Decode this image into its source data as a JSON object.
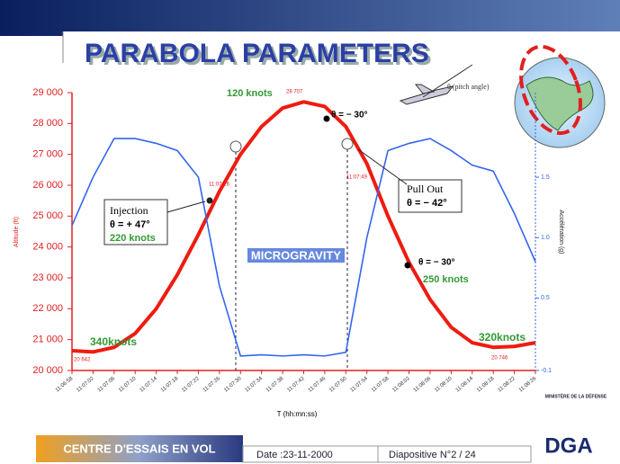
{
  "header": {
    "title": "PARABOLA PARAMETERS"
  },
  "chart_data": {
    "type": "line",
    "xlabel": "T (hh:mn:ss)",
    "ylabel": "Altitude (ft)",
    "y2label": "Accélération (g)",
    "categories": [
      "11:06:58",
      "11:07:02",
      "11:07:06",
      "11:07:10",
      "11:07:14",
      "11:07:18",
      "11:07:22",
      "11:07:26",
      "11:07:30",
      "11:07:34",
      "11:07:38",
      "11:07:42",
      "11:07:46",
      "11:07:50",
      "11:07:54",
      "11:07:58",
      "11:08:02",
      "11:08:06",
      "11:08:10",
      "11:08:14",
      "11:08:18",
      "11:08:22",
      "11:08:26"
    ],
    "series": [
      {
        "name": "Altitude",
        "color": "#ee1c10",
        "values": [
          20642,
          20600,
          20750,
          21200,
          22000,
          23100,
          24400,
          25800,
          27000,
          27900,
          28500,
          28700,
          28550,
          27900,
          26700,
          25000,
          23500,
          22300,
          21400,
          20900,
          20750,
          20780,
          20900
        ]
      },
      {
        "name": "Accélération",
        "color": "#3366ee",
        "axis": "y2",
        "values": [
          1.1,
          1.5,
          1.82,
          1.82,
          1.78,
          1.72,
          1.5,
          0.6,
          0.02,
          0.03,
          0.02,
          0.03,
          0.02,
          0.05,
          1.0,
          1.72,
          1.78,
          1.82,
          1.72,
          1.6,
          1.55,
          1.2,
          0.8
        ]
      }
    ],
    "ylim": [
      20000,
      29000
    ],
    "yticks": [
      {
        "value": 20000,
        "label": "20 000"
      },
      {
        "value": 21000,
        "label": "21 000"
      },
      {
        "value": 22000,
        "label": "22 000"
      },
      {
        "value": 23000,
        "label": "23 000"
      },
      {
        "value": 24000,
        "label": "24 000"
      },
      {
        "value": 25000,
        "label": "25 000"
      },
      {
        "value": 26000,
        "label": "26 000"
      },
      {
        "value": 27000,
        "label": "27 000"
      },
      {
        "value": 28000,
        "label": "28 000"
      },
      {
        "value": 29000,
        "label": "29 000"
      }
    ],
    "y2lim": [
      -0.1,
      2.2
    ],
    "y2ticks": [
      -0.1,
      0.5,
      {
        "value": 1,
        "label": "1.0"
      },
      1.5
    ],
    "annotations": [
      "120 knots",
      "28 707",
      "θ = − 30°",
      "11:07:26",
      "11:07:49",
      "Injection",
      "θ = + 47°",
      "220 knots",
      "Pull Out",
      "θ = − 42°",
      "MICROGRAVITY",
      "340knots",
      "20 642",
      "θ = − 30°",
      "250 knots",
      "320knots",
      "20 746",
      "θ (pitch angle)"
    ]
  },
  "footer": {
    "center": "CENTRE D'ESSAIS EN VOL",
    "date": "Date :23-11-2000",
    "slide": "Diapositive N°2 / 24",
    "ministry": "MINISTÈRE DE LA DÉFENSE",
    "logo": "DGA"
  }
}
